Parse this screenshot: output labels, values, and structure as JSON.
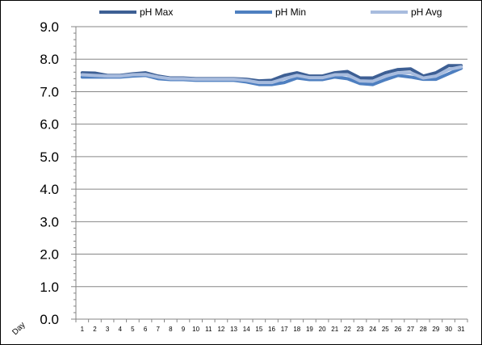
{
  "chart_data": {
    "type": "line",
    "title": "",
    "xlabel": "Day",
    "ylabel": "",
    "ylim": [
      0,
      9
    ],
    "y_ticks": [
      "0.0",
      "1.0",
      "2.0",
      "3.0",
      "4.0",
      "5.0",
      "6.0",
      "7.0",
      "8.0",
      "9.0"
    ],
    "categories": [
      "1",
      "2",
      "3",
      "4",
      "5",
      "6",
      "7",
      "8",
      "9",
      "10",
      "11",
      "12",
      "13",
      "14",
      "15",
      "16",
      "17",
      "18",
      "19",
      "20",
      "21",
      "22",
      "23",
      "24",
      "25",
      "26",
      "27",
      "28",
      "29",
      "30",
      "31"
    ],
    "grid": "horizontal",
    "legend_position": "top",
    "series": [
      {
        "name": "pH Max",
        "color": "#3d5f94",
        "values": [
          7.58,
          7.57,
          7.5,
          7.5,
          7.55,
          7.58,
          7.48,
          7.42,
          7.42,
          7.4,
          7.4,
          7.4,
          7.4,
          7.38,
          7.33,
          7.35,
          7.5,
          7.58,
          7.48,
          7.48,
          7.58,
          7.62,
          7.42,
          7.42,
          7.58,
          7.68,
          7.7,
          7.48,
          7.58,
          7.8,
          7.8
        ]
      },
      {
        "name": "pH Min",
        "color": "#4e7fc0",
        "values": [
          7.45,
          7.45,
          7.45,
          7.45,
          7.48,
          7.5,
          7.4,
          7.37,
          7.37,
          7.35,
          7.35,
          7.35,
          7.35,
          7.3,
          7.22,
          7.22,
          7.28,
          7.42,
          7.37,
          7.37,
          7.45,
          7.4,
          7.25,
          7.22,
          7.37,
          7.5,
          7.45,
          7.38,
          7.38,
          7.55,
          7.72
        ]
      },
      {
        "name": "pH Avg",
        "color": "#a8bcde",
        "values": [
          7.52,
          7.5,
          7.48,
          7.48,
          7.52,
          7.53,
          7.45,
          7.4,
          7.4,
          7.38,
          7.38,
          7.38,
          7.38,
          7.35,
          7.28,
          7.28,
          7.4,
          7.5,
          7.43,
          7.43,
          7.52,
          7.52,
          7.33,
          7.32,
          7.48,
          7.58,
          7.58,
          7.42,
          7.48,
          7.68,
          7.76
        ]
      }
    ]
  }
}
